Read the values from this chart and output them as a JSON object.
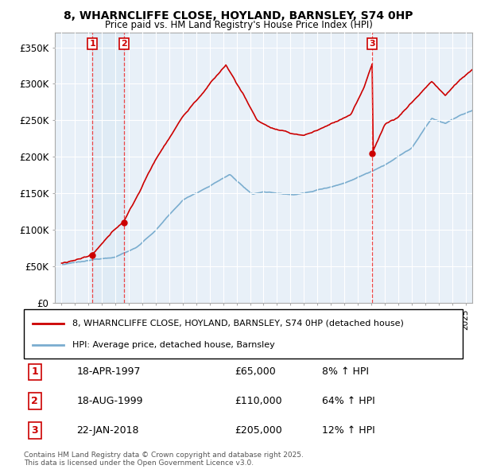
{
  "title_line1": "8, WHARNCLIFFE CLOSE, HOYLAND, BARNSLEY, S74 0HP",
  "title_line2": "Price paid vs. HM Land Registry's House Price Index (HPI)",
  "red_line_label": "8, WHARNCLIFFE CLOSE, HOYLAND, BARNSLEY, S74 0HP (detached house)",
  "blue_line_label": "HPI: Average price, detached house, Barnsley",
  "sale_points": [
    {
      "num": 1,
      "date_x": 1997.29,
      "price": 65000,
      "label": "18-APR-1997",
      "amount": "£65,000",
      "pct": "8% ↑ HPI"
    },
    {
      "num": 2,
      "date_x": 1999.62,
      "price": 110000,
      "label": "18-AUG-1999",
      "amount": "£110,000",
      "pct": "64% ↑ HPI"
    },
    {
      "num": 3,
      "date_x": 2018.05,
      "price": 205000,
      "label": "22-JAN-2018",
      "amount": "£205,000",
      "pct": "12% ↑ HPI"
    }
  ],
  "ylabel_ticks": [
    0,
    50000,
    100000,
    150000,
    200000,
    250000,
    300000,
    350000
  ],
  "ylabel_labels": [
    "£0",
    "£50K",
    "£100K",
    "£150K",
    "£200K",
    "£250K",
    "£300K",
    "£350K"
  ],
  "xlim": [
    1994.5,
    2025.5
  ],
  "ylim": [
    0,
    370000
  ],
  "background_color": "#ffffff",
  "plot_bg_color": "#e8f0f8",
  "grid_color": "#ffffff",
  "red_color": "#cc0000",
  "blue_color": "#7aadcf",
  "vline_color": "#ee3333",
  "sale1_bg": "#dce8f5",
  "footer": "Contains HM Land Registry data © Crown copyright and database right 2025.\nThis data is licensed under the Open Government Licence v3.0."
}
